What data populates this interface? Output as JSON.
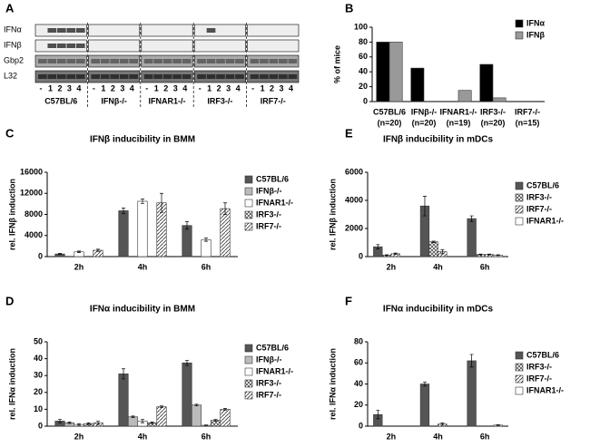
{
  "gel": {
    "panel": "A",
    "rows": [
      "IFNα",
      "IFNβ",
      "Gbp2",
      "L32"
    ],
    "lane_labels": [
      "-",
      "1",
      "2",
      "3",
      "4"
    ],
    "groups": [
      "C57BL/6",
      "IFNβ-/-",
      "IFNAR1-/-",
      "IRF3-/-",
      "IRF7-/-"
    ]
  },
  "chart_data": [
    {
      "type": "bar",
      "panel": "B",
      "ylabel": "% of mice",
      "categories": [
        "C57BL/6",
        "IFNβ-/-",
        "IFNAR1-/-",
        "IRF3-/-",
        "IRF7-/-"
      ],
      "n_labels": [
        "(n=20)",
        "(n=20)",
        "(n=19)",
        "(n=20)",
        "(n=15)"
      ],
      "series": [
        {
          "name": "IFNα",
          "color": "#000000",
          "values": [
            80,
            45,
            0,
            50,
            0
          ]
        },
        {
          "name": "IFNβ",
          "color": "#999999",
          "values": [
            80,
            0,
            15,
            5,
            0
          ]
        }
      ],
      "ylim": [
        0,
        100
      ],
      "yticks": [
        0,
        20,
        40,
        60,
        80,
        100
      ]
    },
    {
      "type": "bar",
      "panel": "C",
      "title": "IFNβ inducibility in BMM",
      "ylabel": "rel. IFNβ induction",
      "categories": [
        "2h",
        "4h",
        "6h"
      ],
      "series": [
        {
          "name": "C57BL/6",
          "color": "#555555",
          "values": [
            500,
            8700,
            5900
          ],
          "errors": [
            100,
            500,
            700
          ]
        },
        {
          "name": "IFNβ-/-",
          "color": "#bbbbbb",
          "values": [
            0,
            0,
            0
          ],
          "errors": [
            0,
            0,
            0
          ]
        },
        {
          "name": "IFNAR1-/-",
          "color": "#ffffff",
          "values": [
            900,
            10500,
            3200
          ],
          "errors": [
            150,
            400,
            300
          ]
        },
        {
          "name": "IRF3-/-",
          "color": "#ffffff",
          "pattern": "cross",
          "values": [
            0,
            0,
            0
          ],
          "errors": [
            0,
            0,
            0
          ]
        },
        {
          "name": "IRF7-/-",
          "color": "#ffffff",
          "pattern": "diagonal",
          "values": [
            1200,
            10200,
            9100
          ],
          "errors": [
            200,
            1800,
            1100
          ]
        }
      ],
      "ylim": [
        0,
        16000
      ],
      "yticks": [
        0,
        4000,
        8000,
        12000,
        16000
      ]
    },
    {
      "type": "bar",
      "panel": "D",
      "title": "IFNα inducibility in BMM",
      "ylabel": "rel. IFNα induction",
      "categories": [
        "2h",
        "4h",
        "6h"
      ],
      "series": [
        {
          "name": "C57BL/6",
          "color": "#555555",
          "values": [
            3,
            31,
            37.5
          ],
          "errors": [
            1,
            3,
            1.5
          ]
        },
        {
          "name": "IFNβ-/-",
          "color": "#bbbbbb",
          "values": [
            2,
            5.5,
            12.5
          ],
          "errors": [
            0.5,
            0.5,
            0.5
          ]
        },
        {
          "name": "IFNAR1-/-",
          "color": "#ffffff",
          "values": [
            1,
            3,
            0.5
          ],
          "errors": [
            0.5,
            1,
            0.2
          ]
        },
        {
          "name": "IRF3-/-",
          "color": "#ffffff",
          "pattern": "cross",
          "values": [
            1.5,
            2,
            3.5
          ],
          "errors": [
            0.5,
            0.5,
            0.5
          ]
        },
        {
          "name": "IRF7-/-",
          "color": "#ffffff",
          "pattern": "diagonal",
          "values": [
            2,
            11.5,
            10
          ],
          "errors": [
            1,
            0.5,
            0.5
          ]
        }
      ],
      "ylim": [
        0,
        50
      ],
      "yticks": [
        0,
        10,
        20,
        30,
        40,
        50
      ]
    },
    {
      "type": "bar",
      "panel": "E",
      "title": "IFNβ inducibility in mDCs",
      "ylabel": "rel. IFNβ induction",
      "categories": [
        "2h",
        "4h",
        "6h"
      ],
      "series": [
        {
          "name": "C57BL/6",
          "color": "#555555",
          "values": [
            700,
            3600,
            2700
          ],
          "errors": [
            150,
            700,
            200
          ]
        },
        {
          "name": "IRF3-/-",
          "color": "#ffffff",
          "pattern": "cross",
          "values": [
            100,
            1050,
            150
          ],
          "errors": [
            30,
            50,
            30
          ]
        },
        {
          "name": "IRF7-/-",
          "color": "#ffffff",
          "pattern": "diagonal",
          "values": [
            200,
            350,
            150
          ],
          "errors": [
            50,
            150,
            30
          ]
        },
        {
          "name": "IFNAR1-/-",
          "color": "#ffffff",
          "values": [
            0,
            0,
            100
          ],
          "errors": [
            0,
            0,
            30
          ]
        }
      ],
      "ylim": [
        0,
        6000
      ],
      "yticks": [
        0,
        2000,
        4000,
        6000
      ]
    },
    {
      "type": "bar",
      "panel": "F",
      "title": "IFNα inducibility in mDCs",
      "ylabel": "rel. IFNα induction",
      "categories": [
        "2h",
        "4h",
        "6h"
      ],
      "series": [
        {
          "name": "C57BL/6",
          "color": "#555555",
          "values": [
            11,
            40,
            62
          ],
          "errors": [
            4,
            2,
            6
          ]
        },
        {
          "name": "IRF3-/-",
          "color": "#ffffff",
          "pattern": "cross",
          "values": [
            0,
            0,
            0
          ],
          "errors": [
            0,
            0,
            0
          ]
        },
        {
          "name": "IRF7-/-",
          "color": "#ffffff",
          "pattern": "diagonal",
          "values": [
            0,
            2,
            0
          ],
          "errors": [
            0,
            1,
            0
          ]
        },
        {
          "name": "IFNAR1-/-",
          "color": "#ffffff",
          "values": [
            0,
            0,
            1
          ],
          "errors": [
            0,
            0,
            0.3
          ]
        }
      ],
      "ylim": [
        0,
        80
      ],
      "yticks": [
        0,
        20,
        40,
        60,
        80
      ]
    }
  ]
}
